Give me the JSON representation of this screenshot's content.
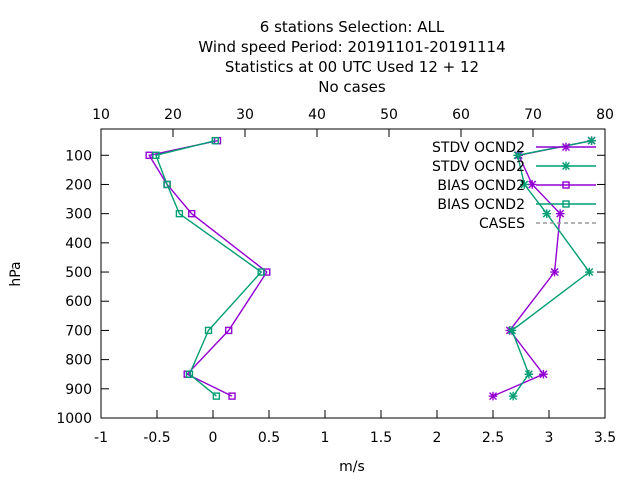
{
  "chart_data": {
    "type": "line",
    "title_lines": [
      "6 stations Selection: ALL",
      "Wind speed  Period: 20191101-20191114",
      "Statistics at 00 UTC  Used  12 + 12",
      "No cases"
    ],
    "xlabel": "m/s",
    "ylabel": "hPa",
    "xlim": [
      -1,
      3.5
    ],
    "ylim": [
      1000,
      10
    ],
    "x_ticks": [
      "-1",
      "-0.5",
      "0",
      "0.5",
      "1",
      "1.5",
      "2",
      "2.5",
      "3",
      "3.5"
    ],
    "x_tick_values": [
      -1,
      -0.5,
      0,
      0.5,
      1,
      1.5,
      2,
      2.5,
      3,
      3.5
    ],
    "y_ticks": [
      "100",
      "200",
      "300",
      "400",
      "500",
      "600",
      "700",
      "800",
      "900",
      "1000"
    ],
    "y_tick_values": [
      100,
      200,
      300,
      400,
      500,
      600,
      700,
      800,
      900,
      1000
    ],
    "x2lim": [
      10,
      80
    ],
    "x2_ticks": [
      "10",
      "20",
      "30",
      "40",
      "50",
      "60",
      "70",
      "80"
    ],
    "x2_tick_values": [
      10,
      20,
      30,
      40,
      50,
      60,
      70,
      80
    ],
    "grid": false,
    "legend_position": "top-right",
    "series": [
      {
        "name": "STDV OCND2",
        "color": "#9400d3",
        "marker": "star",
        "x": [
          3.38,
          2.73,
          2.85,
          3.1,
          3.05,
          2.65,
          2.95,
          2.5
        ],
        "y": [
          50,
          100,
          200,
          300,
          500,
          700,
          850,
          925
        ]
      },
      {
        "name": "STDV OCND2",
        "color": "#009e73",
        "marker": "star",
        "x": [
          3.38,
          2.72,
          2.78,
          2.98,
          3.36,
          2.67,
          2.82,
          2.68
        ],
        "y": [
          50,
          100,
          200,
          300,
          500,
          700,
          850,
          925
        ]
      },
      {
        "name": "BIAS OCND2",
        "color": "#9400d3",
        "marker": "square",
        "x": [
          0.04,
          -0.57,
          -0.41,
          -0.19,
          0.48,
          0.14,
          -0.23,
          0.17
        ],
        "y": [
          50,
          100,
          200,
          300,
          500,
          700,
          850,
          925
        ]
      },
      {
        "name": "BIAS OCND2",
        "color": "#009e73",
        "marker": "square",
        "x": [
          0.02,
          -0.51,
          -0.41,
          -0.3,
          0.43,
          -0.04,
          -0.21,
          0.03
        ],
        "y": [
          50,
          100,
          200,
          300,
          500,
          700,
          850,
          925
        ]
      },
      {
        "name": "CASES",
        "color": "#999999",
        "marker": "none",
        "dashed": true,
        "x": [],
        "y": []
      }
    ]
  }
}
